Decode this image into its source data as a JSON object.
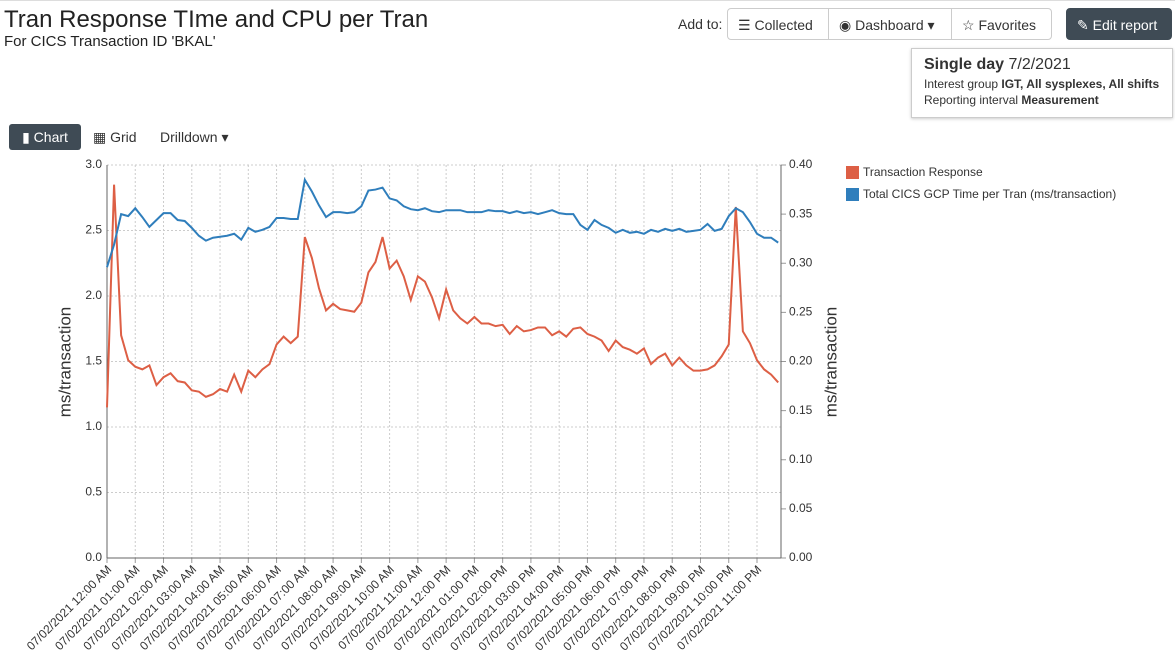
{
  "header": {
    "title": "Tran Response TIme and CPU per Tran",
    "subtitle": "For CICS Transaction ID 'BKAL'"
  },
  "toolbar": {
    "add_to": "Add to:",
    "collected": "Collected",
    "dashboard": "Dashboard",
    "favorites": "Favorites",
    "edit_report": "Edit report"
  },
  "info": {
    "period": "Single day",
    "date": "7/2/2021",
    "interest_label": "Interest group",
    "interest_value": "IGT, All sysplexes, All shifts",
    "interval_label": "Reporting interval",
    "interval_value": "Measurement"
  },
  "view_tabs": {
    "chart": "Chart",
    "grid": "Grid",
    "drilldown": "Drilldown"
  },
  "chart_data": {
    "type": "line",
    "ylabel": "ms/transaction",
    "y2label": "ms/transaction",
    "grid": true,
    "legend": "right",
    "categories": [
      "07/02/2021 12:00 AM",
      null,
      null,
      null,
      "07/02/2021 01:00 AM",
      null,
      null,
      null,
      "07/02/2021 02:00 AM",
      null,
      null,
      null,
      "07/02/2021 03:00 AM",
      null,
      null,
      null,
      "07/02/2021 04:00 AM",
      null,
      null,
      null,
      "07/02/2021 05:00 AM",
      null,
      null,
      null,
      "07/02/2021 06:00 AM",
      null,
      null,
      null,
      "07/02/2021 07:00 AM",
      null,
      null,
      null,
      "07/02/2021 08:00 AM",
      null,
      null,
      null,
      "07/02/2021 09:00 AM",
      null,
      null,
      null,
      "07/02/2021 10:00 AM",
      null,
      null,
      null,
      "07/02/2021 11:00 AM",
      null,
      null,
      null,
      "07/02/2021 12:00 PM",
      null,
      null,
      null,
      "07/02/2021 01:00 PM",
      null,
      null,
      null,
      "07/02/2021 02:00 PM",
      null,
      null,
      null,
      "07/02/2021 03:00 PM",
      null,
      null,
      null,
      "07/02/2021 04:00 PM",
      null,
      null,
      null,
      "07/02/2021 05:00 PM",
      null,
      null,
      null,
      "07/02/2021 06:00 PM",
      null,
      null,
      null,
      "07/02/2021 07:00 PM",
      null,
      null,
      null,
      "07/02/2021 08:00 PM",
      null,
      null,
      null,
      "07/02/2021 09:00 PM",
      null,
      null,
      null,
      "07/02/2021 10:00 PM",
      null,
      null,
      null,
      "07/02/2021 11:00 PM",
      null,
      null,
      null
    ],
    "ylim": [
      0,
      3
    ],
    "yticks": [
      {
        "value": 0,
        "label": "0.0"
      },
      0.5,
      {
        "value": 1,
        "label": "1.0"
      },
      1.5,
      {
        "value": 2,
        "label": "2.0"
      },
      2.5,
      {
        "value": 3,
        "label": "3.0"
      }
    ],
    "y2lim": [
      0,
      0.4
    ],
    "y2ticks": [
      {
        "value": 0,
        "label": "0.00"
      },
      0.05,
      {
        "value": 0.1,
        "label": "0.10"
      },
      0.15,
      {
        "value": 0.2,
        "label": "0.20"
      },
      0.25,
      {
        "value": 0.3,
        "label": "0.30"
      },
      0.35,
      {
        "value": 0.4,
        "label": "0.40"
      }
    ],
    "series": [
      {
        "name": "Transaction Response",
        "color": "#dd5f45",
        "values": [
          1.15,
          2.85,
          1.7,
          1.51,
          1.46,
          1.44,
          1.47,
          1.32,
          1.38,
          1.41,
          1.35,
          1.34,
          1.28,
          1.27,
          1.23,
          1.25,
          1.29,
          1.27,
          1.4,
          1.27,
          1.43,
          1.38,
          1.44,
          1.48,
          1.63,
          1.69,
          1.64,
          1.69,
          2.45,
          2.29,
          2.06,
          1.89,
          1.94,
          1.9,
          1.89,
          1.88,
          1.95,
          2.18,
          2.26,
          2.45,
          2.21,
          2.27,
          2.15,
          1.97,
          2.15,
          2.11,
          1.99,
          1.83,
          2.05,
          1.89,
          1.83,
          1.79,
          1.84,
          1.79,
          1.79,
          1.77,
          1.78,
          1.71,
          1.77,
          1.73,
          1.74,
          1.76,
          1.76,
          1.7,
          1.73,
          1.69,
          1.75,
          1.76,
          1.71,
          1.69,
          1.66,
          1.58,
          1.66,
          1.61,
          1.59,
          1.56,
          1.6,
          1.48,
          1.53,
          1.56,
          1.47,
          1.53,
          1.47,
          1.43,
          1.43,
          1.44,
          1.47,
          1.54,
          1.63,
          2.68,
          1.73,
          1.64,
          1.51,
          1.44,
          1.4,
          1.34
        ]
      },
      {
        "name": "Total CICS GCP Time per Tran (ms/transaction)",
        "color": "#2f7ebc",
        "axis": "y2",
        "values": [
          0.296,
          0.319,
          0.35,
          0.348,
          0.356,
          0.347,
          0.337,
          0.344,
          0.351,
          0.351,
          0.344,
          0.343,
          0.336,
          0.328,
          0.323,
          0.326,
          0.327,
          0.328,
          0.33,
          0.324,
          0.336,
          0.332,
          0.334,
          0.337,
          0.346,
          0.346,
          0.345,
          0.345,
          0.385,
          0.373,
          0.359,
          0.347,
          0.352,
          0.352,
          0.351,
          0.352,
          0.358,
          0.374,
          0.375,
          0.377,
          0.366,
          0.364,
          0.358,
          0.355,
          0.354,
          0.356,
          0.353,
          0.352,
          0.354,
          0.354,
          0.354,
          0.352,
          0.352,
          0.352,
          0.354,
          0.353,
          0.353,
          0.351,
          0.353,
          0.351,
          0.352,
          0.35,
          0.352,
          0.354,
          0.351,
          0.35,
          0.35,
          0.339,
          0.334,
          0.344,
          0.339,
          0.336,
          0.331,
          0.334,
          0.331,
          0.332,
          0.33,
          0.334,
          0.332,
          0.335,
          0.333,
          0.335,
          0.332,
          0.333,
          0.334,
          0.34,
          0.333,
          0.335,
          0.348,
          0.356,
          0.352,
          0.342,
          0.33,
          0.326,
          0.326,
          0.321
        ]
      }
    ]
  }
}
